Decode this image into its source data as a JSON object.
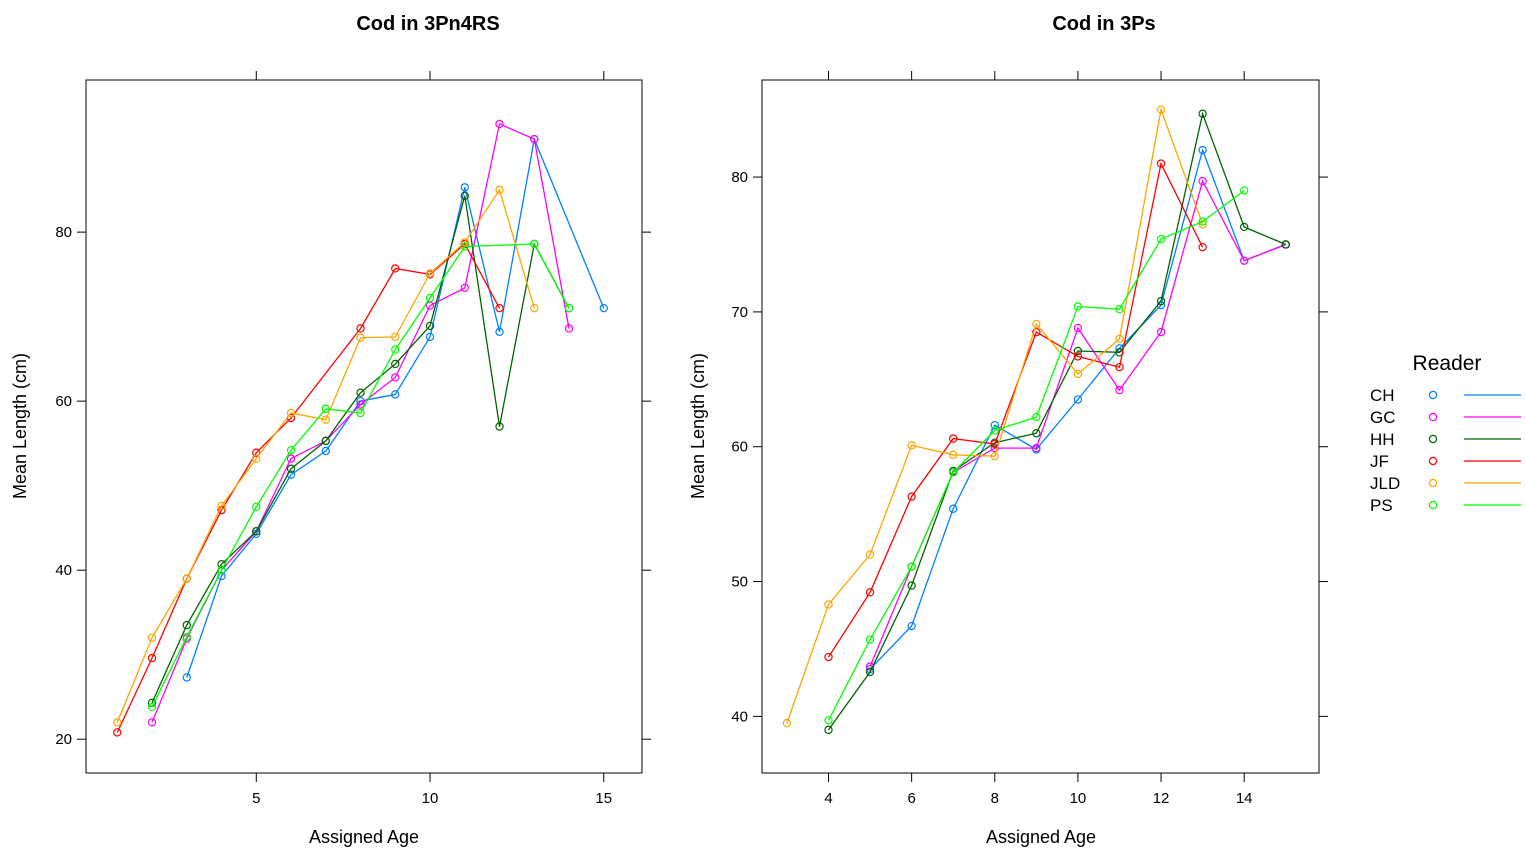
{
  "colors": {
    "CH": "#0080ff",
    "GC": "#ff00ff",
    "HH": "#006400",
    "JF": "#ff0000",
    "JLD": "#ffa500",
    "PS": "#00ff00"
  },
  "legend": {
    "title": "Reader",
    "entries": [
      "CH",
      "GC",
      "HH",
      "JF",
      "JLD",
      "PS"
    ]
  },
  "chart_data": [
    {
      "type": "line",
      "title": "Cod in 3Pn4RS",
      "xlabel": "Assigned Age",
      "ylabel": "Mean Length (cm)",
      "xlim": [
        0.1,
        16.1
      ],
      "ylim": [
        16,
        98
      ],
      "xticks": [
        5,
        10,
        15
      ],
      "yticks": [
        20,
        40,
        60,
        80
      ],
      "series": [
        {
          "name": "CH",
          "x": [
            3,
            4,
            5,
            6,
            7,
            8,
            9,
            10,
            11,
            12,
            13,
            15
          ],
          "y": [
            27.3,
            39.3,
            44.3,
            51.3,
            54.1,
            60,
            60.8,
            67.6,
            85.3,
            68.2,
            91,
            71
          ]
        },
        {
          "name": "GC",
          "x": [
            2,
            3,
            4,
            5,
            6,
            7,
            8,
            9,
            10,
            11,
            12,
            13,
            14
          ],
          "y": [
            22,
            31.9,
            40,
            44.6,
            53.2,
            55.3,
            59.6,
            62.8,
            71.3,
            73.4,
            92.8,
            91,
            68.6
          ]
        },
        {
          "name": "HH",
          "x": [
            2,
            3,
            4,
            5,
            6,
            7,
            8,
            9,
            10,
            11,
            12,
            13,
            14
          ],
          "y": [
            24.3,
            33.5,
            40.7,
            44.6,
            52,
            55.3,
            61,
            64.4,
            68.9,
            84.3,
            57,
            78.6,
            71
          ]
        },
        {
          "name": "JF",
          "x": [
            1,
            2,
            3,
            4,
            5,
            6,
            8,
            9,
            10,
            11,
            12
          ],
          "y": [
            20.8,
            29.6,
            39,
            47.1,
            53.9,
            58,
            68.6,
            75.7,
            75,
            78.6,
            71
          ]
        },
        {
          "name": "JLD",
          "x": [
            1,
            2,
            3,
            4,
            5,
            6,
            7,
            8,
            9,
            10,
            11,
            12,
            13
          ],
          "y": [
            22,
            32,
            39,
            47.6,
            53.2,
            58.6,
            57.8,
            67.5,
            67.6,
            75.1,
            78.8,
            85,
            71
          ]
        },
        {
          "name": "PS",
          "x": [
            2,
            3,
            4,
            5,
            6,
            7,
            8,
            9,
            10,
            11,
            13,
            14
          ],
          "y": [
            23.8,
            32.1,
            40,
            47.5,
            54.2,
            59.1,
            58.6,
            66.1,
            72.2,
            78.3,
            78.6,
            71
          ]
        }
      ]
    },
    {
      "type": "line",
      "title": "Cod in 3Ps",
      "xlabel": "Assigned Age",
      "ylabel": "Mean Length (cm)",
      "xlim": [
        2.4,
        15.8
      ],
      "ylim": [
        35.8,
        87.2
      ],
      "xticks": [
        4,
        6,
        8,
        10,
        12,
        14
      ],
      "yticks": [
        40,
        50,
        60,
        70,
        80
      ],
      "series": [
        {
          "name": "CH",
          "x": [
            5,
            6,
            7,
            8,
            9,
            10,
            11,
            12,
            13,
            14,
            15
          ],
          "y": [
            43.5,
            46.7,
            55.4,
            61.6,
            59.8,
            63.5,
            67.3,
            70.5,
            82,
            73.8,
            75
          ]
        },
        {
          "name": "GC",
          "x": [
            5,
            6,
            7,
            8,
            9,
            10,
            11,
            12,
            13,
            14,
            15
          ],
          "y": [
            43.7,
            51.1,
            58.1,
            59.9,
            59.9,
            68.8,
            64.2,
            68.5,
            79.7,
            73.8,
            75
          ]
        },
        {
          "name": "HH",
          "x": [
            4,
            5,
            6,
            7,
            8,
            9,
            10,
            11,
            12,
            13,
            14,
            15
          ],
          "y": [
            39,
            43.3,
            49.7,
            58.2,
            60.3,
            61,
            67.1,
            67,
            70.8,
            84.7,
            76.3,
            75
          ]
        },
        {
          "name": "JF",
          "x": [
            4,
            5,
            6,
            7,
            8,
            9,
            10,
            11,
            12,
            13
          ],
          "y": [
            44.4,
            49.2,
            56.3,
            60.6,
            60.2,
            68.5,
            66.7,
            65.9,
            81,
            74.8
          ]
        },
        {
          "name": "JLD",
          "x": [
            3,
            4,
            5,
            6,
            7,
            8,
            9,
            10,
            11,
            12,
            13
          ],
          "y": [
            39.5,
            48.3,
            52,
            60.1,
            59.4,
            59.3,
            69.1,
            65.4,
            68,
            85,
            76.5
          ]
        },
        {
          "name": "PS",
          "x": [
            4,
            5,
            6,
            7,
            8,
            9,
            10,
            11,
            12,
            13,
            14
          ],
          "y": [
            39.7,
            45.7,
            51.1,
            58.1,
            61.2,
            62.2,
            70.4,
            70.2,
            75.4,
            76.7,
            79
          ]
        }
      ]
    }
  ]
}
